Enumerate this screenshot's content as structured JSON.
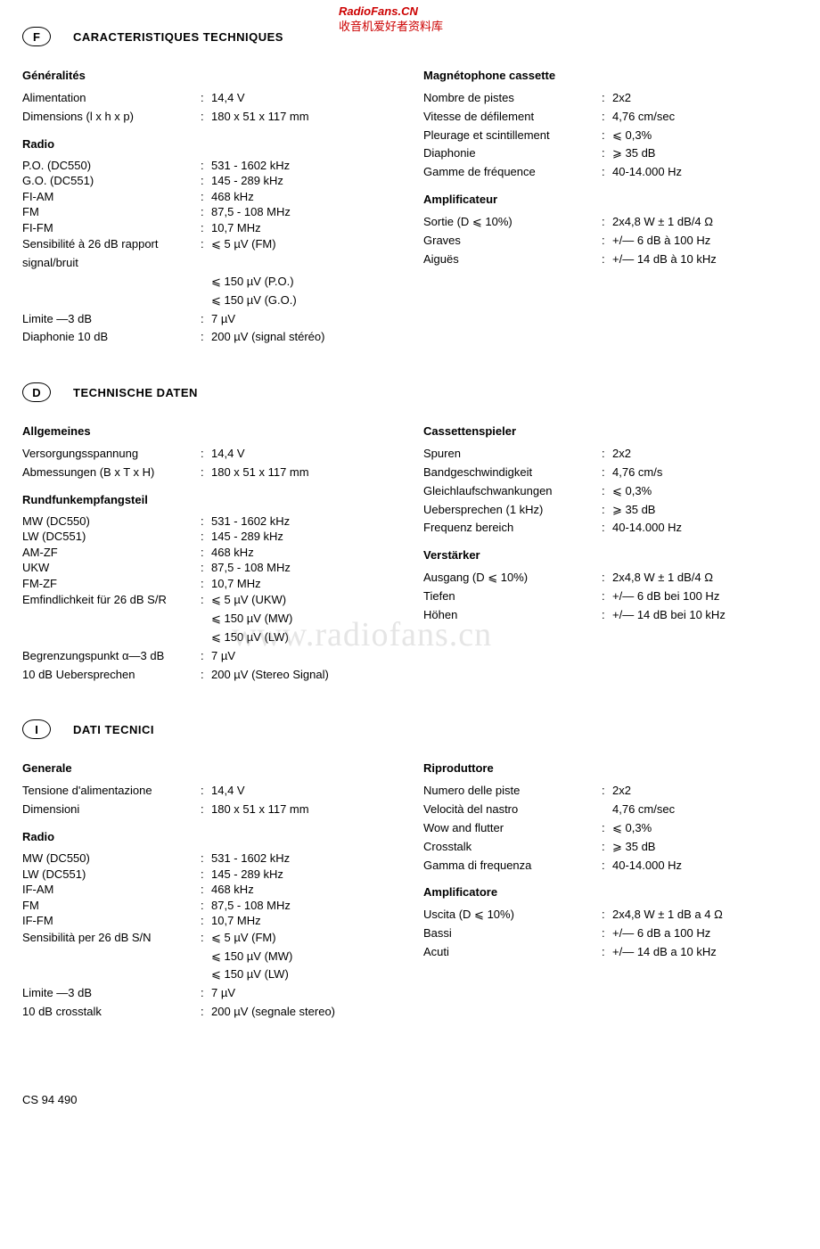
{
  "watermark": {
    "top_line1": "RadioFans.CN",
    "top_line2": "收音机爱好者资料库",
    "mid": "www.radiofans.cn"
  },
  "footer": "CS 94 490",
  "sections": [
    {
      "badge": "F",
      "title": "CARACTERISTIQUES TECHNIQUES",
      "left": [
        {
          "type": "heading",
          "text": "Généralités"
        },
        {
          "type": "row",
          "label": "Alimentation",
          "value": "14,4 V"
        },
        {
          "type": "row",
          "label": "Dimensions (l x h x p)",
          "value": "180 x 51 x 117 mm"
        },
        {
          "type": "heading",
          "text": "Radio"
        },
        {
          "type": "row",
          "label": "P.O. (DC550)",
          "value": "531 - 1602 kHz",
          "tight": true
        },
        {
          "type": "row",
          "label": "G.O. (DC551)",
          "value": "145 -  289 kHz",
          "tight": true
        },
        {
          "type": "row",
          "label": "FI-AM",
          "value": "468 kHz",
          "tight": true
        },
        {
          "type": "row",
          "label": "FM",
          "value": "87,5 - 108 MHz",
          "tight": true
        },
        {
          "type": "row",
          "label": "FI-FM",
          "value": "10,7 MHz",
          "tight": true
        },
        {
          "type": "row",
          "label": "Sensibilité à 26 dB rapport signal/bruit",
          "value": "⩽    5 µV (FM)"
        },
        {
          "type": "row",
          "label": "",
          "value": "⩽ 150 µV (P.O.)",
          "nocolon": true
        },
        {
          "type": "row",
          "label": "",
          "value": "⩽ 150 µV (G.O.)",
          "nocolon": true
        },
        {
          "type": "row",
          "label": "Limite —3 dB",
          "value": "7 µV"
        },
        {
          "type": "row",
          "label": "Diaphonie 10 dB",
          "value": "200 µV (signal stéréo)"
        }
      ],
      "right": [
        {
          "type": "heading",
          "text": "Magnétophone cassette"
        },
        {
          "type": "row",
          "label": "Nombre de pistes",
          "value": "2x2"
        },
        {
          "type": "row",
          "label": "Vitesse de défilement",
          "value": "4,76 cm/sec"
        },
        {
          "type": "row",
          "label": "Pleurage et scintillement",
          "value": "⩽ 0,3%"
        },
        {
          "type": "row",
          "label": "Diaphonie",
          "value": "⩾ 35 dB"
        },
        {
          "type": "row",
          "label": "Gamme de fréquence",
          "value": "40-14.000 Hz"
        },
        {
          "type": "heading",
          "text": "Amplificateur"
        },
        {
          "type": "row",
          "label": "Sortie (D ⩽ 10%)",
          "value": "2x4,8 W ± 1 dB/4 Ω"
        },
        {
          "type": "row",
          "label": "Graves",
          "value": "+/—  6 dB à 100 Hz"
        },
        {
          "type": "row",
          "label": "Aiguës",
          "value": "+/— 14 dB à 10 kHz"
        }
      ]
    },
    {
      "badge": "D",
      "title": "TECHNISCHE DATEN",
      "left": [
        {
          "type": "heading",
          "text": "Allgemeines"
        },
        {
          "type": "row",
          "label": "Versorgungsspannung",
          "value": "14,4 V"
        },
        {
          "type": "row",
          "label": "Abmessungen (B x T x H)",
          "value": "180 x 51 x 117 mm"
        },
        {
          "type": "heading",
          "text": "Rundfunkempfangsteil"
        },
        {
          "type": "row",
          "label": "MW (DC550)",
          "value": "531 - 1602 kHz",
          "tight": true
        },
        {
          "type": "row",
          "label": "LW (DC551)",
          "value": "145 -  289 kHz",
          "tight": true
        },
        {
          "type": "row",
          "label": "AM-ZF",
          "value": "468 kHz",
          "tight": true
        },
        {
          "type": "row",
          "label": "UKW",
          "value": "87,5 - 108 MHz",
          "tight": true
        },
        {
          "type": "row",
          "label": "FM-ZF",
          "value": "10,7 MHz",
          "tight": true
        },
        {
          "type": "row",
          "label": "Emfindlichkeit für 26 dB S/R",
          "value": "⩽    5 µV (UKW)"
        },
        {
          "type": "row",
          "label": "",
          "value": "⩽ 150 µV (MW)",
          "nocolon": true
        },
        {
          "type": "row",
          "label": "",
          "value": "⩽ 150 µV (LW)",
          "nocolon": true
        },
        {
          "type": "row",
          "label": "Begrenzungspunkt α—3 dB",
          "value": "7 µV"
        },
        {
          "type": "row",
          "label": "10 dB Uebersprechen",
          "value": "200 µV (Stereo Signal)"
        }
      ],
      "right": [
        {
          "type": "heading",
          "text": "Cassettenspieler"
        },
        {
          "type": "row",
          "label": "Spuren",
          "value": "2x2"
        },
        {
          "type": "row",
          "label": "Bandgeschwindigkeit",
          "value": "4,76 cm/s"
        },
        {
          "type": "row",
          "label": "Gleichlaufschwankungen",
          "value": "⩽ 0,3%"
        },
        {
          "type": "row",
          "label": "Uebersprechen (1 kHz)",
          "value": "⩾ 35 dB"
        },
        {
          "type": "row",
          "label": "Frequenz bereich",
          "value": "40-14.000 Hz"
        },
        {
          "type": "heading",
          "text": "Verstärker"
        },
        {
          "type": "row",
          "label": "Ausgang (D ⩽ 10%)",
          "value": "2x4,8 W ± 1 dB/4 Ω"
        },
        {
          "type": "row",
          "label": "Tiefen",
          "value": "+/—  6 dB bei 100 Hz"
        },
        {
          "type": "row",
          "label": "Höhen",
          "value": "+/— 14 dB bei 10 kHz"
        }
      ]
    },
    {
      "badge": "I",
      "title": "DATI TECNICI",
      "left": [
        {
          "type": "heading",
          "text": "Generale"
        },
        {
          "type": "row",
          "label": "Tensione d'alimentazione",
          "value": "14,4 V"
        },
        {
          "type": "row",
          "label": "Dimensioni",
          "value": "180 x 51 x 117 mm"
        },
        {
          "type": "heading",
          "text": "Radio"
        },
        {
          "type": "row",
          "label": "MW (DC550)",
          "value": "531 - 1602 kHz",
          "tight": true
        },
        {
          "type": "row",
          "label": "LW (DC551)",
          "value": "145 -  289 kHz",
          "tight": true
        },
        {
          "type": "row",
          "label": "IF-AM",
          "value": "468 kHz",
          "tight": true
        },
        {
          "type": "row",
          "label": "FM",
          "value": "87,5 - 108 MHz",
          "tight": true
        },
        {
          "type": "row",
          "label": "IF-FM",
          "value": "10,7 MHz",
          "tight": true
        },
        {
          "type": "row",
          "label": "Sensibilità per 26 dB S/N",
          "value": "⩽    5 µV (FM)"
        },
        {
          "type": "row",
          "label": "",
          "value": "⩽ 150 µV (MW)",
          "nocolon": true
        },
        {
          "type": "row",
          "label": "",
          "value": "⩽ 150 µV (LW)",
          "nocolon": true
        },
        {
          "type": "row",
          "label": "Limite —3 dB",
          "value": "7 µV"
        },
        {
          "type": "row",
          "label": "10 dB crosstalk",
          "value": "200 µV (segnale stereo)"
        }
      ],
      "right": [
        {
          "type": "heading",
          "text": "Riproduttore"
        },
        {
          "type": "row",
          "label": "Numero delle piste",
          "value": "2x2"
        },
        {
          "type": "row",
          "label": "Velocità del nastro",
          "value": "4,76 cm/sec",
          "nocolon": true
        },
        {
          "type": "row",
          "label": "Wow and flutter",
          "value": "⩽ 0,3%"
        },
        {
          "type": "row",
          "label": "Crosstalk",
          "value": "⩾ 35 dB"
        },
        {
          "type": "row",
          "label": "Gamma di frequenza",
          "value": "40-14.000 Hz"
        },
        {
          "type": "heading",
          "text": "Amplificatore"
        },
        {
          "type": "row",
          "label": "Uscita (D ⩽ 10%)",
          "value": "2x4,8 W ± 1 dB a 4 Ω"
        },
        {
          "type": "row",
          "label": "Bassi",
          "value": "+/—  6 dB a 100 Hz"
        },
        {
          "type": "row",
          "label": "Acuti",
          "value": "+/— 14 dB a 10 kHz"
        }
      ]
    }
  ]
}
